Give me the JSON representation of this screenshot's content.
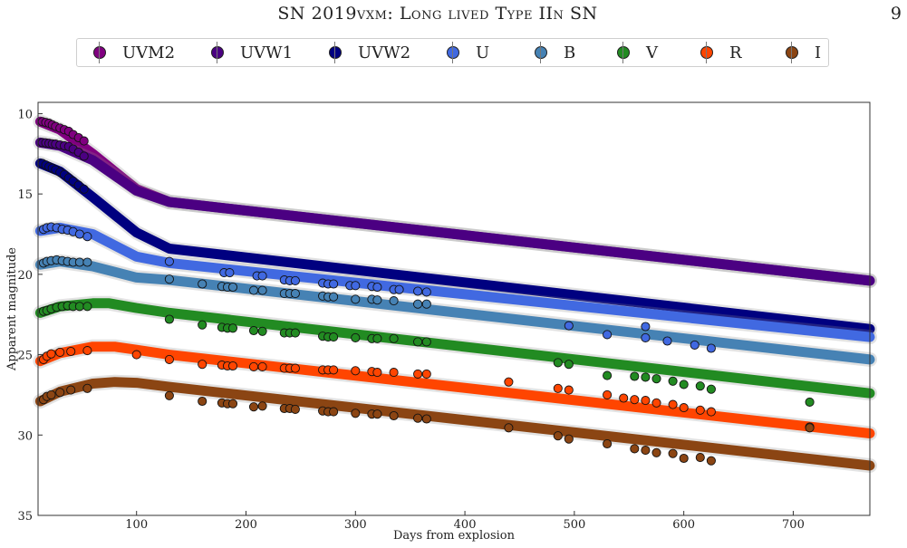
{
  "page": {
    "title": "SN 2019vxm: Long lived Type IIn SN",
    "page_number": "9"
  },
  "chart_data": {
    "type": "scatter",
    "xlabel": "Days from explosion",
    "ylabel": "Apparent magnitude",
    "xlim": [
      10,
      770
    ],
    "ylim": [
      35,
      9.3
    ],
    "y_inverted": true,
    "xticks": [
      100,
      200,
      300,
      400,
      500,
      600,
      700
    ],
    "yticks": [
      10,
      15,
      20,
      25,
      30,
      35
    ],
    "grid": false,
    "legend_position": "top, outside plot",
    "series": [
      {
        "name": "UVM2",
        "color": "#800080",
        "model": [
          [
            12,
            10.5
          ],
          [
            30,
            11.0
          ],
          [
            60,
            12.5
          ],
          [
            100,
            14.7
          ],
          [
            130,
            15.5
          ],
          [
            770,
            20.4
          ]
        ],
        "points": [
          [
            14,
            10.5
          ],
          [
            17,
            10.55
          ],
          [
            20,
            10.6
          ],
          [
            23,
            10.7
          ],
          [
            26,
            10.8
          ],
          [
            30,
            10.9
          ],
          [
            34,
            11.0
          ],
          [
            38,
            11.1
          ],
          [
            42,
            11.3
          ],
          [
            47,
            11.5
          ],
          [
            52,
            11.7
          ]
        ]
      },
      {
        "name": "UVW1",
        "color": "#4b0082",
        "model": [
          [
            12,
            11.8
          ],
          [
            30,
            12.0
          ],
          [
            60,
            12.9
          ],
          [
            100,
            14.8
          ],
          [
            130,
            15.5
          ],
          [
            770,
            20.4
          ]
        ],
        "points": [
          [
            14,
            11.8
          ],
          [
            17,
            11.82
          ],
          [
            20,
            11.85
          ],
          [
            23,
            11.88
          ],
          [
            26,
            11.9
          ],
          [
            30,
            11.95
          ],
          [
            34,
            12.0
          ],
          [
            38,
            12.05
          ],
          [
            42,
            12.2
          ],
          [
            47,
            12.4
          ],
          [
            52,
            12.65
          ]
        ]
      },
      {
        "name": "UVW2",
        "color": "#000080",
        "model": [
          [
            12,
            13.1
          ],
          [
            30,
            13.6
          ],
          [
            60,
            15.2
          ],
          [
            100,
            17.4
          ],
          [
            130,
            18.4
          ],
          [
            770,
            23.4
          ]
        ],
        "points": [
          [
            14,
            13.1
          ],
          [
            17,
            13.2
          ],
          [
            20,
            13.3
          ],
          [
            23,
            13.4
          ],
          [
            26,
            13.5
          ],
          [
            30,
            13.65
          ],
          [
            34,
            13.8
          ],
          [
            38,
            14.0
          ],
          [
            42,
            14.2
          ],
          [
            47,
            14.45
          ],
          [
            52,
            14.7
          ]
        ]
      },
      {
        "name": "U",
        "color": "#4169e1",
        "model": [
          [
            12,
            17.3
          ],
          [
            30,
            17.1
          ],
          [
            60,
            17.5
          ],
          [
            100,
            18.9
          ],
          [
            130,
            19.3
          ],
          [
            770,
            23.9
          ]
        ],
        "points": [
          [
            15,
            17.2
          ],
          [
            18,
            17.1
          ],
          [
            22,
            17.05
          ],
          [
            27,
            17.1
          ],
          [
            32,
            17.2
          ],
          [
            37,
            17.25
          ],
          [
            42,
            17.35
          ],
          [
            48,
            17.5
          ],
          [
            55,
            17.65
          ],
          [
            130,
            19.2
          ],
          [
            180,
            19.9
          ],
          [
            185,
            19.9
          ],
          [
            210,
            20.1
          ],
          [
            215,
            20.1
          ],
          [
            235,
            20.35
          ],
          [
            240,
            20.4
          ],
          [
            245,
            20.4
          ],
          [
            270,
            20.55
          ],
          [
            275,
            20.6
          ],
          [
            280,
            20.6
          ],
          [
            295,
            20.7
          ],
          [
            300,
            20.7
          ],
          [
            315,
            20.75
          ],
          [
            320,
            20.8
          ],
          [
            335,
            20.95
          ],
          [
            340,
            20.95
          ],
          [
            357,
            21.05
          ],
          [
            365,
            21.1
          ],
          [
            495,
            23.2
          ],
          [
            530,
            23.75
          ],
          [
            565,
            23.25
          ],
          [
            565,
            23.95
          ],
          [
            585,
            24.15
          ],
          [
            610,
            24.4
          ],
          [
            625,
            24.6
          ]
        ]
      },
      {
        "name": "B",
        "color": "#4682b4",
        "model": [
          [
            12,
            19.4
          ],
          [
            30,
            19.2
          ],
          [
            60,
            19.5
          ],
          [
            100,
            20.2
          ],
          [
            130,
            20.35
          ],
          [
            770,
            25.3
          ]
        ],
        "points": [
          [
            15,
            19.3
          ],
          [
            18,
            19.2
          ],
          [
            22,
            19.15
          ],
          [
            27,
            19.1
          ],
          [
            32,
            19.15
          ],
          [
            37,
            19.2
          ],
          [
            42,
            19.25
          ],
          [
            48,
            19.25
          ],
          [
            55,
            19.25
          ],
          [
            130,
            20.3
          ],
          [
            160,
            20.6
          ],
          [
            178,
            20.75
          ],
          [
            183,
            20.8
          ],
          [
            188,
            20.8
          ],
          [
            207,
            21.0
          ],
          [
            215,
            21.0
          ],
          [
            235,
            21.2
          ],
          [
            240,
            21.2
          ],
          [
            245,
            21.2
          ],
          [
            270,
            21.35
          ],
          [
            275,
            21.4
          ],
          [
            280,
            21.4
          ],
          [
            300,
            21.55
          ],
          [
            315,
            21.55
          ],
          [
            320,
            21.6
          ],
          [
            335,
            21.65
          ],
          [
            357,
            21.85
          ],
          [
            365,
            21.85
          ]
        ]
      },
      {
        "name": "V",
        "color": "#228b22",
        "model": [
          [
            12,
            22.4
          ],
          [
            30,
            22.0
          ],
          [
            60,
            21.8
          ],
          [
            75,
            21.8
          ],
          [
            100,
            22.1
          ],
          [
            130,
            22.4
          ],
          [
            770,
            27.4
          ]
        ],
        "points": [
          [
            15,
            22.3
          ],
          [
            18,
            22.25
          ],
          [
            22,
            22.15
          ],
          [
            27,
            22.05
          ],
          [
            32,
            22.0
          ],
          [
            37,
            21.95
          ],
          [
            42,
            22.0
          ],
          [
            48,
            22.0
          ],
          [
            55,
            22.0
          ],
          [
            130,
            22.8
          ],
          [
            160,
            23.15
          ],
          [
            178,
            23.3
          ],
          [
            183,
            23.35
          ],
          [
            188,
            23.35
          ],
          [
            207,
            23.5
          ],
          [
            215,
            23.55
          ],
          [
            235,
            23.65
          ],
          [
            240,
            23.65
          ],
          [
            245,
            23.65
          ],
          [
            270,
            23.85
          ],
          [
            275,
            23.9
          ],
          [
            280,
            23.9
          ],
          [
            300,
            23.95
          ],
          [
            315,
            24.0
          ],
          [
            320,
            24.0
          ],
          [
            335,
            24.0
          ],
          [
            357,
            24.2
          ],
          [
            365,
            24.2
          ],
          [
            485,
            25.5
          ],
          [
            495,
            25.6
          ],
          [
            530,
            26.3
          ],
          [
            555,
            26.35
          ],
          [
            565,
            26.4
          ],
          [
            575,
            26.5
          ],
          [
            590,
            26.65
          ],
          [
            600,
            26.85
          ],
          [
            615,
            26.95
          ],
          [
            625,
            27.15
          ],
          [
            715,
            27.95
          ]
        ]
      },
      {
        "name": "R",
        "color": "#ff4500",
        "model": [
          [
            12,
            25.4
          ],
          [
            30,
            24.9
          ],
          [
            60,
            24.5
          ],
          [
            80,
            24.5
          ],
          [
            100,
            24.7
          ],
          [
            130,
            25.0
          ],
          [
            770,
            29.9
          ]
        ],
        "points": [
          [
            15,
            25.3
          ],
          [
            18,
            25.1
          ],
          [
            22,
            24.95
          ],
          [
            30,
            24.85
          ],
          [
            40,
            24.8
          ],
          [
            55,
            24.75
          ],
          [
            100,
            25.0
          ],
          [
            130,
            25.3
          ],
          [
            160,
            25.6
          ],
          [
            178,
            25.65
          ],
          [
            183,
            25.7
          ],
          [
            188,
            25.7
          ],
          [
            207,
            25.75
          ],
          [
            215,
            25.75
          ],
          [
            235,
            25.85
          ],
          [
            240,
            25.85
          ],
          [
            245,
            25.85
          ],
          [
            270,
            25.95
          ],
          [
            275,
            25.95
          ],
          [
            280,
            25.95
          ],
          [
            300,
            26.0
          ],
          [
            315,
            26.05
          ],
          [
            320,
            26.1
          ],
          [
            335,
            26.1
          ],
          [
            357,
            26.2
          ],
          [
            365,
            26.2
          ],
          [
            440,
            26.7
          ],
          [
            485,
            27.1
          ],
          [
            495,
            27.2
          ],
          [
            530,
            27.5
          ],
          [
            545,
            27.7
          ],
          [
            555,
            27.8
          ],
          [
            565,
            27.85
          ],
          [
            575,
            28.0
          ],
          [
            590,
            28.1
          ],
          [
            600,
            28.3
          ],
          [
            615,
            28.45
          ],
          [
            625,
            28.55
          ],
          [
            715,
            29.5
          ]
        ]
      },
      {
        "name": "I",
        "color": "#8b4513",
        "model": [
          [
            12,
            27.9
          ],
          [
            30,
            27.3
          ],
          [
            60,
            26.8
          ],
          [
            80,
            26.7
          ],
          [
            100,
            26.75
          ],
          [
            130,
            27.0
          ],
          [
            770,
            31.9
          ]
        ],
        "points": [
          [
            15,
            27.8
          ],
          [
            18,
            27.6
          ],
          [
            22,
            27.5
          ],
          [
            30,
            27.35
          ],
          [
            40,
            27.2
          ],
          [
            55,
            27.1
          ],
          [
            130,
            27.55
          ],
          [
            160,
            27.9
          ],
          [
            178,
            28.0
          ],
          [
            183,
            28.05
          ],
          [
            188,
            28.05
          ],
          [
            207,
            28.25
          ],
          [
            215,
            28.2
          ],
          [
            235,
            28.35
          ],
          [
            240,
            28.35
          ],
          [
            245,
            28.4
          ],
          [
            270,
            28.5
          ],
          [
            275,
            28.55
          ],
          [
            280,
            28.55
          ],
          [
            300,
            28.65
          ],
          [
            315,
            28.7
          ],
          [
            320,
            28.7
          ],
          [
            335,
            28.8
          ],
          [
            357,
            28.95
          ],
          [
            365,
            29.0
          ],
          [
            440,
            29.55
          ],
          [
            485,
            30.05
          ],
          [
            495,
            30.25
          ],
          [
            530,
            30.55
          ],
          [
            555,
            30.85
          ],
          [
            565,
            30.95
          ],
          [
            575,
            31.1
          ],
          [
            590,
            31.15
          ],
          [
            600,
            31.45
          ],
          [
            615,
            31.4
          ],
          [
            625,
            31.6
          ],
          [
            715,
            29.55
          ]
        ]
      }
    ]
  }
}
